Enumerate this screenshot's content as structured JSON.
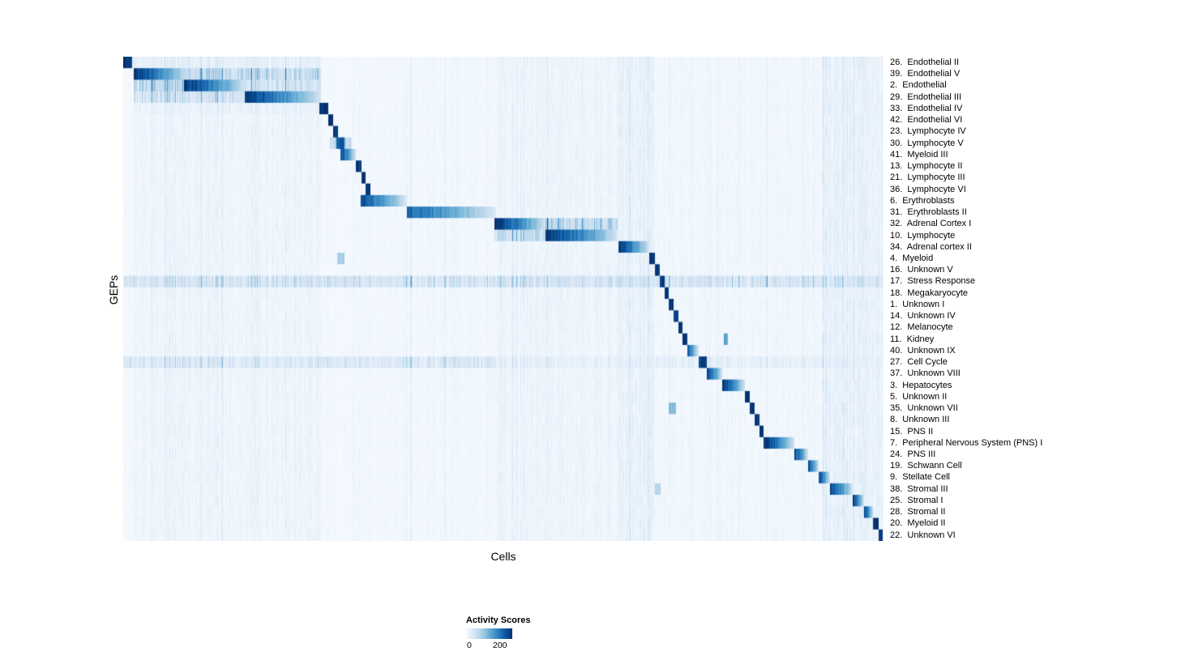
{
  "chart_data": {
    "type": "heatmap",
    "title": "",
    "xlabel": "Cells",
    "ylabel": "GEPs",
    "n_rows": 42,
    "legend": {
      "title": "Activity Scores",
      "ticks": [
        0,
        200
      ],
      "tick_labels": [
        "0",
        "200"
      ],
      "value_max_estimate": 250
    },
    "colormap": {
      "name": "Blues",
      "stops": [
        "#f7fbff",
        "#deebf7",
        "#c6dbef",
        "#9ecae1",
        "#6baed6",
        "#4292c6",
        "#2171b5",
        "#08519c",
        "#08306b"
      ]
    },
    "column_bands": [
      {
        "start": 0.013,
        "end": 0.26,
        "level": 0.05
      },
      {
        "start": 0.3,
        "end": 0.49,
        "level": 0.03
      },
      {
        "start": 0.49,
        "end": 0.652,
        "level": 0.05
      },
      {
        "start": 0.652,
        "end": 0.7,
        "level": 0.08
      },
      {
        "start": 0.7,
        "end": 0.92,
        "level": 0.035
      },
      {
        "start": 0.92,
        "end": 1.0,
        "level": 0.08
      }
    ],
    "rows": [
      {
        "label": "26.  Endothelial II",
        "blocks": [
          {
            "start": 0.0,
            "end": 0.011,
            "peak": 1.0
          }
        ],
        "diffuse": [
          {
            "start": 0.011,
            "end": 0.26,
            "level": 0.09
          }
        ]
      },
      {
        "label": "39.  Endothelial V",
        "blocks": [
          {
            "start": 0.013,
            "end": 0.085,
            "peak": 1.0
          }
        ],
        "diffuse": [
          {
            "start": 0.085,
            "end": 0.26,
            "level": 0.26
          }
        ]
      },
      {
        "label": "2.  Endothelial",
        "blocks": [
          {
            "start": 0.08,
            "end": 0.16,
            "peak": 1.0
          }
        ],
        "diffuse": [
          {
            "start": 0.013,
            "end": 0.08,
            "level": 0.3
          },
          {
            "start": 0.16,
            "end": 0.26,
            "level": 0.2
          }
        ]
      },
      {
        "label": "29.  Endothelial III",
        "blocks": [
          {
            "start": 0.16,
            "end": 0.26,
            "peak": 0.95
          }
        ],
        "diffuse": [
          {
            "start": 0.013,
            "end": 0.16,
            "level": 0.2
          }
        ]
      },
      {
        "label": "33.  Endothelial IV",
        "blocks": [
          {
            "start": 0.258,
            "end": 0.269,
            "peak": 1.0
          }
        ],
        "diffuse": [
          {
            "start": 0.013,
            "end": 0.258,
            "level": 0.07
          }
        ]
      },
      {
        "label": "42.  Endothelial VI",
        "blocks": [
          {
            "start": 0.269,
            "end": 0.276,
            "peak": 1.0
          }
        ]
      },
      {
        "label": "23.  Lymphocyte IV",
        "blocks": [
          {
            "start": 0.276,
            "end": 0.282,
            "peak": 1.0
          }
        ]
      },
      {
        "label": "30.  Lymphocyte V",
        "blocks": [
          {
            "start": 0.28,
            "end": 0.291,
            "peak": 0.85
          }
        ],
        "diffuse": [
          {
            "start": 0.272,
            "end": 0.3,
            "level": 0.22
          }
        ]
      },
      {
        "label": "41.  Myeloid III",
        "blocks": [
          {
            "start": 0.285,
            "end": 0.306,
            "peak": 0.95
          }
        ]
      },
      {
        "label": "13.  Lymphocyte II",
        "blocks": [
          {
            "start": 0.306,
            "end": 0.313,
            "peak": 1.0
          }
        ]
      },
      {
        "label": "21.  Lymphocyte III",
        "blocks": [
          {
            "start": 0.313,
            "end": 0.319,
            "peak": 1.0
          }
        ]
      },
      {
        "label": "36.  Lymphocyte VI",
        "blocks": [
          {
            "start": 0.319,
            "end": 0.325,
            "peak": 1.0
          }
        ]
      },
      {
        "label": "6.  Erythroblasts",
        "blocks": [
          {
            "start": 0.312,
            "end": 0.373,
            "peak": 0.88
          }
        ]
      },
      {
        "label": "31.  Erythroblasts II",
        "blocks": [
          {
            "start": 0.373,
            "end": 0.49,
            "peak": 0.8
          }
        ]
      },
      {
        "label": "32.  Adrenal Cortex I",
        "blocks": [
          {
            "start": 0.488,
            "end": 0.556,
            "peak": 1.0
          }
        ],
        "diffuse": [
          {
            "start": 0.556,
            "end": 0.652,
            "level": 0.28
          }
        ]
      },
      {
        "label": "10.  Lymphocyte",
        "blocks": [
          {
            "start": 0.556,
            "end": 0.65,
            "peak": 1.0
          }
        ],
        "diffuse": [
          {
            "start": 0.488,
            "end": 0.556,
            "level": 0.22
          }
        ]
      },
      {
        "label": "34.  Adrenal cortex II",
        "blocks": [
          {
            "start": 0.652,
            "end": 0.692,
            "peak": 0.95
          }
        ]
      },
      {
        "label": "4.  Myeloid",
        "blocks": [
          {
            "start": 0.692,
            "end": 0.7,
            "peak": 1.0
          },
          {
            "start": 0.281,
            "end": 0.291,
            "peak": 0.35
          }
        ]
      },
      {
        "label": "16.  Unknown V",
        "blocks": [
          {
            "start": 0.7,
            "end": 0.706,
            "peak": 1.0
          }
        ]
      },
      {
        "label": "17.  Stress Response",
        "blocks": [
          {
            "start": 0.706,
            "end": 0.712,
            "peak": 1.0
          }
        ],
        "diffuse": [
          {
            "start": 0.0,
            "end": 1.0,
            "level": 0.18
          }
        ]
      },
      {
        "label": "18.  Megakaryocyte",
        "blocks": [
          {
            "start": 0.712,
            "end": 0.718,
            "peak": 1.0
          }
        ]
      },
      {
        "label": "1.  Unknown I",
        "blocks": [
          {
            "start": 0.718,
            "end": 0.724,
            "peak": 1.0
          }
        ]
      },
      {
        "label": "14.  Unknown IV",
        "blocks": [
          {
            "start": 0.724,
            "end": 0.73,
            "peak": 1.0
          }
        ]
      },
      {
        "label": "12.  Melanocyte",
        "blocks": [
          {
            "start": 0.73,
            "end": 0.736,
            "peak": 1.0
          }
        ]
      },
      {
        "label": "11.  Kidney",
        "blocks": [
          {
            "start": 0.736,
            "end": 0.742,
            "peak": 1.0
          },
          {
            "start": 0.79,
            "end": 0.796,
            "peak": 0.55
          }
        ]
      },
      {
        "label": "40.  Unknown IX",
        "blocks": [
          {
            "start": 0.742,
            "end": 0.757,
            "peak": 0.85
          }
        ]
      },
      {
        "label": "27.  Cell Cycle",
        "blocks": [
          {
            "start": 0.757,
            "end": 0.768,
            "peak": 0.95
          }
        ],
        "diffuse": [
          {
            "start": 0.0,
            "end": 0.49,
            "level": 0.15
          },
          {
            "start": 0.49,
            "end": 1.0,
            "level": 0.09
          }
        ]
      },
      {
        "label": "37.  Unknown VIII",
        "blocks": [
          {
            "start": 0.768,
            "end": 0.788,
            "peak": 0.95
          }
        ]
      },
      {
        "label": "3.  Hepatocytes",
        "blocks": [
          {
            "start": 0.788,
            "end": 0.818,
            "peak": 1.0
          }
        ]
      },
      {
        "label": "5.  Unknown II",
        "blocks": [
          {
            "start": 0.818,
            "end": 0.824,
            "peak": 1.0
          }
        ]
      },
      {
        "label": "35.  Unknown VII",
        "blocks": [
          {
            "start": 0.824,
            "end": 0.831,
            "peak": 1.0
          },
          {
            "start": 0.718,
            "end": 0.727,
            "peak": 0.45
          }
        ]
      },
      {
        "label": "8.  Unknown III",
        "blocks": [
          {
            "start": 0.831,
            "end": 0.837,
            "peak": 1.0
          }
        ]
      },
      {
        "label": "15.  PNS II",
        "blocks": [
          {
            "start": 0.837,
            "end": 0.843,
            "peak": 1.0
          }
        ]
      },
      {
        "label": "7.  Peripheral Nervous System (PNS) I",
        "blocks": [
          {
            "start": 0.843,
            "end": 0.883,
            "peak": 1.0
          }
        ]
      },
      {
        "label": "24.  PNS III",
        "blocks": [
          {
            "start": 0.883,
            "end": 0.901,
            "peak": 0.95
          }
        ]
      },
      {
        "label": "19.  Schwann Cell",
        "blocks": [
          {
            "start": 0.901,
            "end": 0.915,
            "peak": 0.95
          }
        ]
      },
      {
        "label": "9.  Stellate Cell",
        "blocks": [
          {
            "start": 0.915,
            "end": 0.93,
            "peak": 0.95
          }
        ]
      },
      {
        "label": "38.  Stromal III",
        "blocks": [
          {
            "start": 0.93,
            "end": 0.96,
            "peak": 0.95
          },
          {
            "start": 0.7,
            "end": 0.707,
            "peak": 0.3
          }
        ]
      },
      {
        "label": "25.  Stromal I",
        "blocks": [
          {
            "start": 0.96,
            "end": 0.975,
            "peak": 0.95
          }
        ]
      },
      {
        "label": "28.  Stromal II",
        "blocks": [
          {
            "start": 0.975,
            "end": 0.987,
            "peak": 0.95
          }
        ]
      },
      {
        "label": "20.  Myeloid II",
        "blocks": [
          {
            "start": 0.987,
            "end": 0.994,
            "peak": 1.0
          }
        ]
      },
      {
        "label": "22.  Unknown VI",
        "blocks": [
          {
            "start": 0.994,
            "end": 1.0,
            "peak": 1.0
          }
        ]
      }
    ]
  }
}
